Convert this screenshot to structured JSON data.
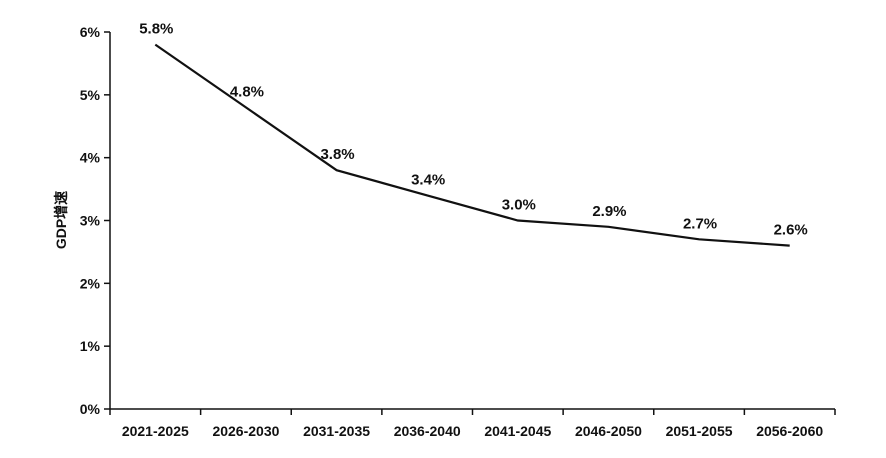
{
  "chart_data": {
    "type": "line",
    "categories": [
      "2021-2025",
      "2026-2030",
      "2031-2035",
      "2036-2040",
      "2041-2045",
      "2046-2050",
      "2051-2055",
      "2056-2060"
    ],
    "series": [
      {
        "values": [
          5.8,
          4.8,
          3.8,
          3.4,
          3.0,
          2.9,
          2.7,
          2.6
        ]
      }
    ],
    "data_labels": [
      "5.8%",
      "4.8%",
      "3.8%",
      "3.4%",
      "3.0%",
      "2.9%",
      "2.7%",
      "2.6%"
    ],
    "y_ticks": [
      0,
      1,
      2,
      3,
      4,
      5,
      6
    ],
    "y_tick_labels": [
      "0%",
      "1%",
      "2%",
      "3%",
      "4%",
      "5%",
      "6%"
    ],
    "ylabel": "GDP增速",
    "xlabel": "",
    "title": "",
    "ylim": [
      0,
      6
    ],
    "grid": false,
    "legend": "none",
    "line_color": "#111111"
  }
}
